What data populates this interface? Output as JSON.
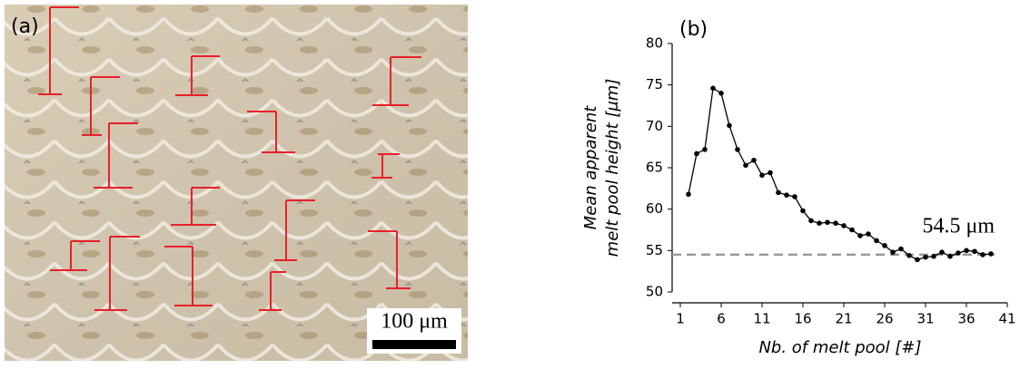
{
  "panel_a": {
    "label": "(a)",
    "scale_bar": "100 μm"
  },
  "chart_data": {
    "type": "line",
    "panel_label": "(b)",
    "y_label": [
      "Mean apparent",
      "melt pool height [μm]"
    ],
    "x_label": "Nb.  of melt pool [#]",
    "x": [
      2,
      3,
      4,
      5,
      6,
      7,
      8,
      9,
      10,
      11,
      12,
      13,
      14,
      15,
      16,
      17,
      18,
      19,
      20,
      21,
      22,
      23,
      24,
      25,
      26,
      27,
      28,
      29,
      30,
      31,
      32,
      33,
      34,
      35,
      36,
      37,
      38,
      39
    ],
    "series": [
      {
        "color": "#000000",
        "values": [
          61.8,
          66.7,
          67.2,
          74.6,
          74.0,
          70.1,
          67.2,
          65.3,
          65.9,
          64.1,
          64.4,
          62.0,
          61.7,
          61.5,
          59.8,
          58.6,
          58.3,
          58.4,
          58.3,
          58.0,
          57.5,
          56.8,
          57.0,
          56.2,
          55.6,
          54.8,
          55.2,
          54.4,
          53.9,
          54.2,
          54.3,
          54.8,
          54.3,
          54.7,
          55.0,
          54.9,
          54.5,
          54.6
        ]
      }
    ],
    "reference_line": {
      "value": 54.5,
      "label": "54.5 μm",
      "color": "#999999"
    },
    "xlim": [
      0,
      41
    ],
    "xticks": [
      1,
      6,
      11,
      16,
      21,
      26,
      31,
      36,
      41
    ],
    "ylim": [
      50,
      80
    ],
    "yticks": [
      50,
      55,
      60,
      65,
      70,
      75,
      80
    ],
    "grid": false
  }
}
